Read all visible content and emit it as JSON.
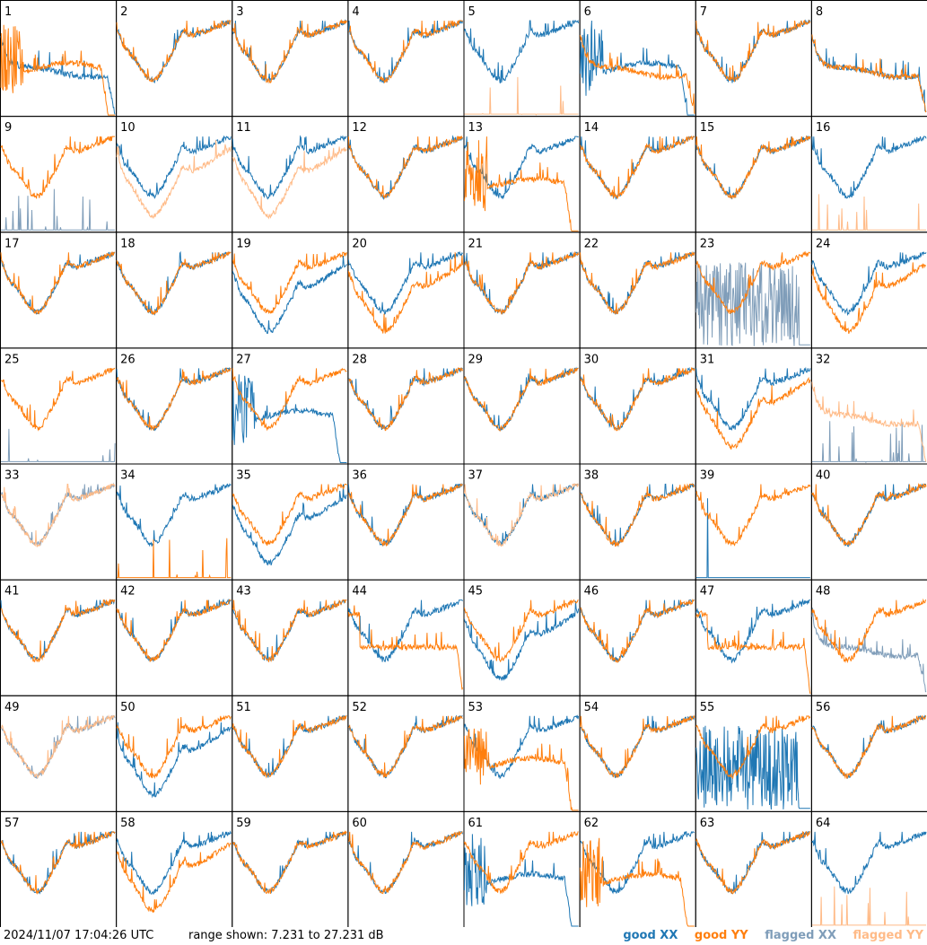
{
  "footer": {
    "timestamp": "2024/11/07 17:04:26 UTC",
    "range": "range shown: 7.231 to 27.231 dB"
  },
  "legend": [
    {
      "label": "good XX",
      "color": "#1f77b4"
    },
    {
      "label": "good YY",
      "color": "#ff7f0e"
    },
    {
      "label": "flagged XX",
      "color": "#7f9db9"
    },
    {
      "label": "flagged YY",
      "color": "#ffbb88"
    }
  ],
  "chart_data": {
    "type": "line",
    "layout": "8x8 small multiples of per-input spectra",
    "ylim": [
      7.231,
      27.231
    ],
    "units": "dB",
    "panels": [
      {
        "label": "1",
        "xx": "good",
        "yy": "good",
        "xx_shape": "sag",
        "yy_shape": "dropoff"
      },
      {
        "label": "2",
        "xx": "good",
        "yy": "good",
        "xx_shape": "normal",
        "yy_shape": "normal"
      },
      {
        "label": "3",
        "xx": "good",
        "yy": "good",
        "xx_shape": "normal",
        "yy_shape": "normal"
      },
      {
        "label": "4",
        "xx": "good",
        "yy": "good",
        "xx_shape": "normal",
        "yy_shape": "normal"
      },
      {
        "label": "5",
        "xx": "good",
        "yy": "flagged",
        "xx_shape": "normal",
        "yy_shape": "spiky"
      },
      {
        "label": "6",
        "xx": "good",
        "yy": "good",
        "xx_shape": "dropoff",
        "yy_shape": "sag"
      },
      {
        "label": "7",
        "xx": "good",
        "yy": "good",
        "xx_shape": "normal",
        "yy_shape": "normal"
      },
      {
        "label": "8",
        "xx": "good",
        "yy": "good",
        "xx_shape": "sag",
        "yy_shape": "sag"
      },
      {
        "label": "9",
        "xx": "flagged",
        "yy": "good",
        "xx_shape": "spiky",
        "yy_shape": "normal"
      },
      {
        "label": "10",
        "xx": "good",
        "yy": "flagged",
        "xx_shape": "normal",
        "yy_shape": "low"
      },
      {
        "label": "11",
        "xx": "good",
        "yy": "flagged",
        "xx_shape": "normal",
        "yy_shape": "low"
      },
      {
        "label": "12",
        "xx": "good",
        "yy": "good",
        "xx_shape": "normal",
        "yy_shape": "normal"
      },
      {
        "label": "13",
        "xx": "good",
        "yy": "good",
        "xx_shape": "normal",
        "yy_shape": "dropoff"
      },
      {
        "label": "14",
        "xx": "good",
        "yy": "good",
        "xx_shape": "normal",
        "yy_shape": "normal"
      },
      {
        "label": "15",
        "xx": "good",
        "yy": "good",
        "xx_shape": "normal",
        "yy_shape": "normal"
      },
      {
        "label": "16",
        "xx": "good",
        "yy": "flagged",
        "xx_shape": "normal",
        "yy_shape": "spiky"
      },
      {
        "label": "17",
        "xx": "good",
        "yy": "good",
        "xx_shape": "normal",
        "yy_shape": "normal"
      },
      {
        "label": "18",
        "xx": "good",
        "yy": "good",
        "xx_shape": "normal",
        "yy_shape": "normal"
      },
      {
        "label": "19",
        "xx": "good",
        "yy": "good",
        "xx_shape": "low",
        "yy_shape": "normal"
      },
      {
        "label": "20",
        "xx": "good",
        "yy": "good",
        "xx_shape": "normal",
        "yy_shape": "low"
      },
      {
        "label": "21",
        "xx": "good",
        "yy": "good",
        "xx_shape": "normal",
        "yy_shape": "normal"
      },
      {
        "label": "22",
        "xx": "good",
        "yy": "good",
        "xx_shape": "normal",
        "yy_shape": "normal"
      },
      {
        "label": "23",
        "xx": "flagged",
        "yy": "good",
        "xx_shape": "noise",
        "yy_shape": "normal"
      },
      {
        "label": "24",
        "xx": "good",
        "yy": "good",
        "xx_shape": "normal",
        "yy_shape": "low"
      },
      {
        "label": "25",
        "xx": "flagged",
        "yy": "good",
        "xx_shape": "spiky",
        "yy_shape": "normal"
      },
      {
        "label": "26",
        "xx": "good",
        "yy": "good",
        "xx_shape": "normal",
        "yy_shape": "normal"
      },
      {
        "label": "27",
        "xx": "good",
        "yy": "good",
        "xx_shape": "dropoff",
        "yy_shape": "normal"
      },
      {
        "label": "28",
        "xx": "good",
        "yy": "good",
        "xx_shape": "normal",
        "yy_shape": "normal"
      },
      {
        "label": "29",
        "xx": "good",
        "yy": "good",
        "xx_shape": "normal",
        "yy_shape": "normal"
      },
      {
        "label": "30",
        "xx": "good",
        "yy": "good",
        "xx_shape": "normal",
        "yy_shape": "normal"
      },
      {
        "label": "31",
        "xx": "good",
        "yy": "good",
        "xx_shape": "normal",
        "yy_shape": "low"
      },
      {
        "label": "32",
        "xx": "flagged",
        "yy": "flagged",
        "xx_shape": "spiky",
        "yy_shape": "sag"
      },
      {
        "label": "33",
        "xx": "flagged",
        "yy": "flagged",
        "xx_shape": "normal",
        "yy_shape": "normal"
      },
      {
        "label": "34",
        "xx": "good",
        "yy": "good",
        "xx_shape": "normal",
        "yy_shape": "spiky"
      },
      {
        "label": "35",
        "xx": "good",
        "yy": "good",
        "xx_shape": "low",
        "yy_shape": "normal"
      },
      {
        "label": "36",
        "xx": "good",
        "yy": "good",
        "xx_shape": "normal",
        "yy_shape": "normal"
      },
      {
        "label": "37",
        "xx": "good",
        "yy": "flagged",
        "xx_shape": "normal",
        "yy_shape": "normal"
      },
      {
        "label": "38",
        "xx": "good",
        "yy": "good",
        "xx_shape": "normal",
        "yy_shape": "normal"
      },
      {
        "label": "39",
        "xx": "good",
        "yy": "good",
        "xx_shape": "spike",
        "yy_shape": "normal"
      },
      {
        "label": "40",
        "xx": "good",
        "yy": "good",
        "xx_shape": "normal",
        "yy_shape": "normal"
      },
      {
        "label": "41",
        "xx": "good",
        "yy": "good",
        "xx_shape": "normal",
        "yy_shape": "normal"
      },
      {
        "label": "42",
        "xx": "good",
        "yy": "good",
        "xx_shape": "normal",
        "yy_shape": "normal"
      },
      {
        "label": "43",
        "xx": "good",
        "yy": "good",
        "xx_shape": "normal",
        "yy_shape": "normal"
      },
      {
        "label": "44",
        "xx": "good",
        "yy": "good",
        "xx_shape": "normal",
        "yy_shape": "flat"
      },
      {
        "label": "45",
        "xx": "good",
        "yy": "good",
        "xx_shape": "low",
        "yy_shape": "normal"
      },
      {
        "label": "46",
        "xx": "good",
        "yy": "good",
        "xx_shape": "normal",
        "yy_shape": "normal"
      },
      {
        "label": "47",
        "xx": "good",
        "yy": "good",
        "xx_shape": "normal",
        "yy_shape": "flat"
      },
      {
        "label": "48",
        "xx": "flagged",
        "yy": "good",
        "xx_shape": "sag",
        "yy_shape": "normal"
      },
      {
        "label": "49",
        "xx": "flagged",
        "yy": "flagged",
        "xx_shape": "normal",
        "yy_shape": "normal"
      },
      {
        "label": "50",
        "xx": "good",
        "yy": "good",
        "xx_shape": "low",
        "yy_shape": "normal"
      },
      {
        "label": "51",
        "xx": "good",
        "yy": "good",
        "xx_shape": "normal",
        "yy_shape": "normal"
      },
      {
        "label": "52",
        "xx": "good",
        "yy": "good",
        "xx_shape": "normal",
        "yy_shape": "normal"
      },
      {
        "label": "53",
        "xx": "good",
        "yy": "good",
        "xx_shape": "normal",
        "yy_shape": "dropoff"
      },
      {
        "label": "54",
        "xx": "good",
        "yy": "good",
        "xx_shape": "normal",
        "yy_shape": "normal"
      },
      {
        "label": "55",
        "xx": "good",
        "yy": "good",
        "xx_shape": "noise",
        "yy_shape": "normal"
      },
      {
        "label": "56",
        "xx": "good",
        "yy": "good",
        "xx_shape": "normal",
        "yy_shape": "normal"
      },
      {
        "label": "57",
        "xx": "good",
        "yy": "good",
        "xx_shape": "normal",
        "yy_shape": "normal"
      },
      {
        "label": "58",
        "xx": "good",
        "yy": "good",
        "xx_shape": "normal",
        "yy_shape": "low"
      },
      {
        "label": "59",
        "xx": "good",
        "yy": "good",
        "xx_shape": "normal",
        "yy_shape": "normal"
      },
      {
        "label": "60",
        "xx": "good",
        "yy": "good",
        "xx_shape": "normal",
        "yy_shape": "normal"
      },
      {
        "label": "61",
        "xx": "good",
        "yy": "good",
        "xx_shape": "dropoff",
        "yy_shape": "normal"
      },
      {
        "label": "62",
        "xx": "good",
        "yy": "good",
        "xx_shape": "normal",
        "yy_shape": "dropoff"
      },
      {
        "label": "63",
        "xx": "good",
        "yy": "good",
        "xx_shape": "normal",
        "yy_shape": "normal"
      },
      {
        "label": "64",
        "xx": "good",
        "yy": "flagged",
        "xx_shape": "normal",
        "yy_shape": "spiky"
      }
    ]
  }
}
